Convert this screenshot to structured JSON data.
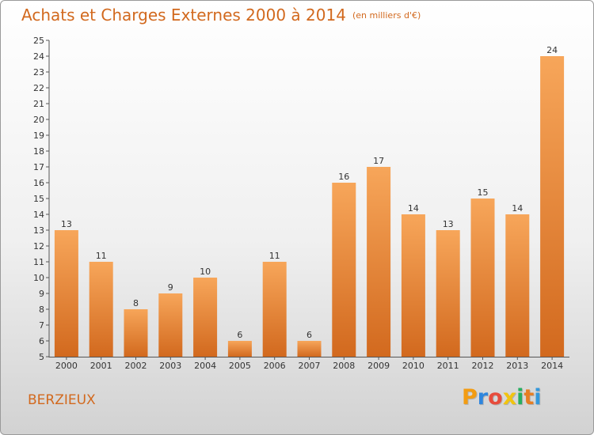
{
  "header": {
    "title": "Achats et Charges Externes 2000 à 2014",
    "unit": "(en milliers d'€)"
  },
  "footer": {
    "commune": "BERZIEUX",
    "logo_letters": [
      "P",
      "r",
      "o",
      "x",
      "i",
      "t",
      "i"
    ],
    "logo_colors": [
      "#f39c12",
      "#2e86de",
      "#e74c3c",
      "#f1c40f",
      "#27ae60",
      "#e67e22",
      "#3498db"
    ]
  },
  "chart_data": {
    "type": "bar",
    "title": "Achats et Charges Externes 2000 à 2014",
    "subtitle": "(en milliers d'€)",
    "xlabel": "",
    "ylabel": "",
    "categories": [
      "2000",
      "2001",
      "2002",
      "2003",
      "2004",
      "2005",
      "2006",
      "2007",
      "2008",
      "2009",
      "2010",
      "2011",
      "2012",
      "2013",
      "2014"
    ],
    "values": [
      13,
      11,
      8,
      9,
      10,
      6,
      11,
      6,
      16,
      17,
      14,
      13,
      15,
      14,
      24
    ],
    "ylim": [
      5,
      25
    ],
    "yticks": [
      5,
      6,
      7,
      8,
      9,
      10,
      11,
      12,
      13,
      14,
      15,
      16,
      17,
      18,
      19,
      20,
      21,
      22,
      23,
      24,
      25
    ],
    "grid": false,
    "bar_color_top": "#f7a65a",
    "bar_color_bottom": "#d2691e"
  }
}
